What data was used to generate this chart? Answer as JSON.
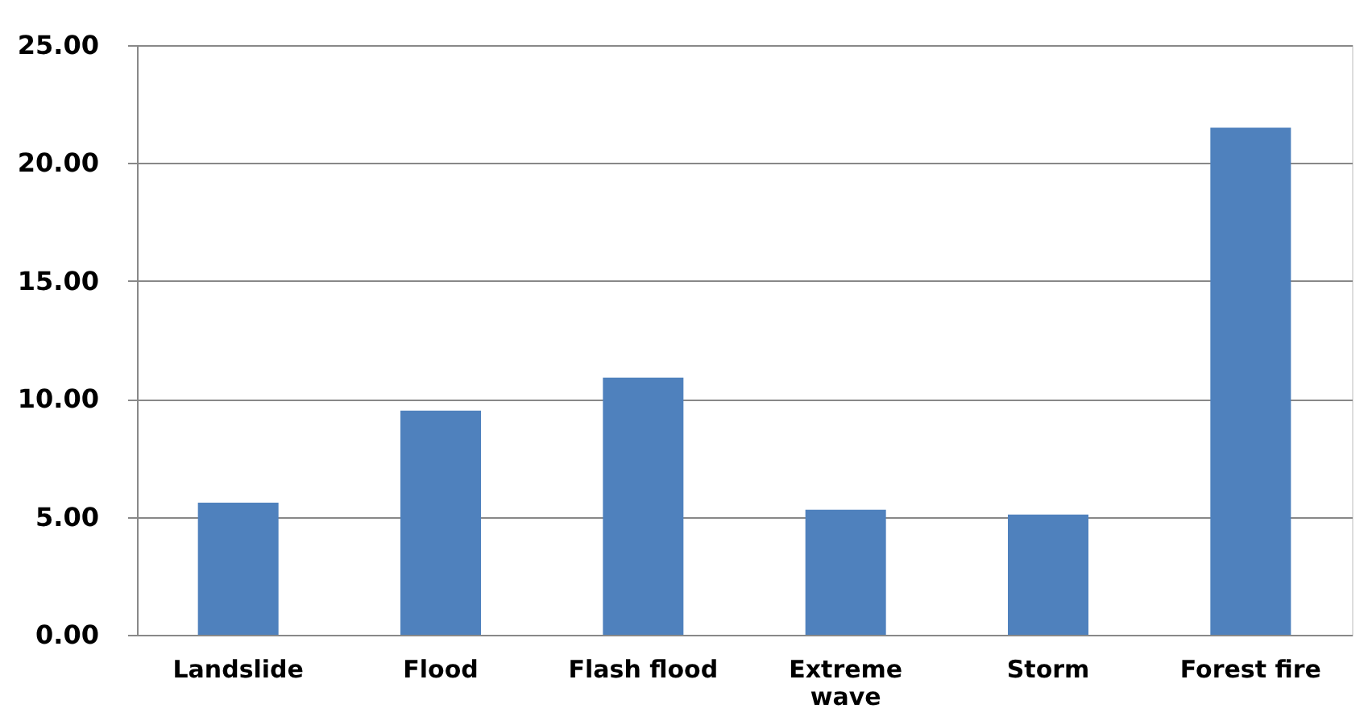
{
  "chart_data": {
    "type": "bar",
    "categories": [
      "Landslide",
      "Flood",
      "Flash flood",
      "Extreme wave",
      "Storm",
      "Forest fire"
    ],
    "values": [
      5.6,
      9.5,
      10.9,
      5.3,
      5.1,
      21.5
    ],
    "color": "#4f81bd",
    "ylim": [
      0,
      25
    ],
    "yticks": [
      {
        "value": 0,
        "label": "0.00"
      },
      {
        "value": 5,
        "label": "5.00"
      },
      {
        "value": 10,
        "label": "10.00"
      },
      {
        "value": 15,
        "label": "15.00"
      },
      {
        "value": 20,
        "label": "20.00"
      },
      {
        "value": 25,
        "label": "25.00"
      }
    ],
    "grid": "y"
  }
}
